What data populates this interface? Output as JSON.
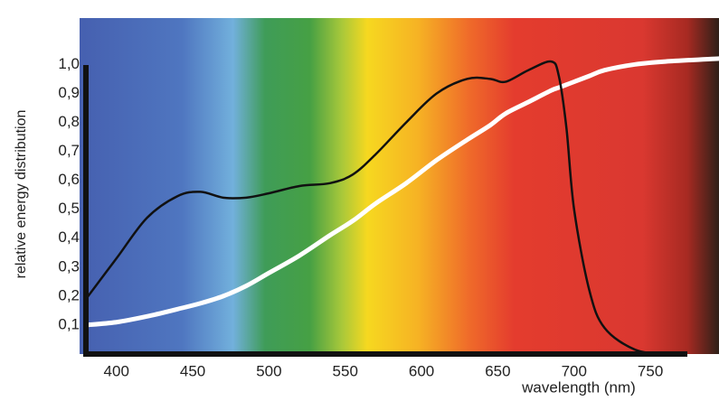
{
  "chart_data": {
    "type": "line",
    "x_label": "wavelength (nm)",
    "y_label": "relative energy distribution",
    "x": [
      380,
      400,
      420,
      440,
      455,
      470,
      485,
      500,
      520,
      540,
      555,
      570,
      590,
      610,
      630,
      645,
      655,
      670,
      685,
      690,
      695,
      700,
      710,
      720,
      740,
      760,
      795
    ],
    "series": [
      {
        "color": "#111111",
        "values": [
          0.19,
          0.33,
          0.47,
          0.545,
          0.56,
          0.54,
          0.54,
          0.555,
          0.58,
          0.59,
          0.62,
          0.69,
          0.8,
          0.9,
          0.95,
          0.95,
          0.94,
          0.98,
          1.01,
          0.96,
          0.78,
          0.5,
          0.22,
          0.09,
          0.015,
          0,
          null
        ]
      },
      {
        "color": "#ffffff",
        "values": [
          0.1,
          0.11,
          0.13,
          0.155,
          0.175,
          0.2,
          0.235,
          0.28,
          0.34,
          0.41,
          0.46,
          0.52,
          0.59,
          0.67,
          0.74,
          0.79,
          0.83,
          0.87,
          0.91,
          0.92,
          0.93,
          0.94,
          0.96,
          0.98,
          1.0,
          1.01,
          1.02
        ]
      }
    ],
    "xlim": [
      380,
      795
    ],
    "ylim": [
      0,
      1.16
    ],
    "xticks": [
      400,
      450,
      500,
      550,
      600,
      650,
      700,
      750
    ],
    "yticks": [
      {
        "value": 0.1,
        "label": "0,1"
      },
      {
        "value": 0.2,
        "label": "0,2"
      },
      {
        "value": 0.3,
        "label": "0,3"
      },
      {
        "value": 0.4,
        "label": "0,4"
      },
      {
        "value": 0.5,
        "label": "0,5"
      },
      {
        "value": 0.6,
        "label": "0,6"
      },
      {
        "value": 0.7,
        "label": "0,7"
      },
      {
        "value": 0.8,
        "label": "0,8"
      },
      {
        "value": 0.9,
        "label": "0,9"
      },
      {
        "value": 1,
        "label": "1,0"
      }
    ],
    "grid": false
  }
}
